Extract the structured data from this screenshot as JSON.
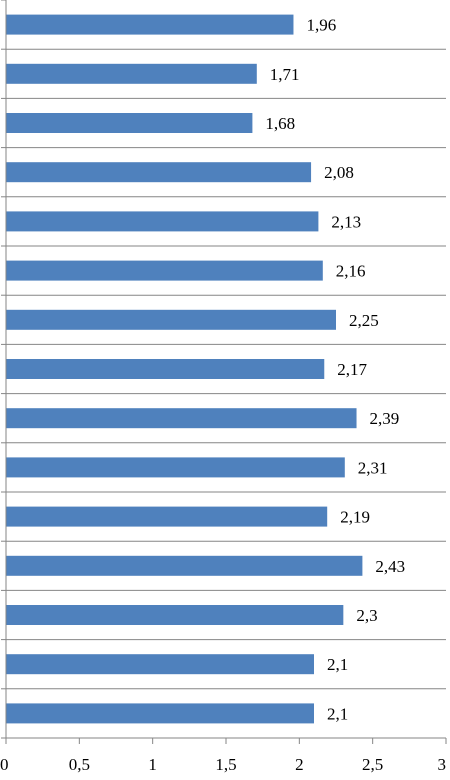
{
  "chart_data": {
    "type": "bar",
    "orientation": "horizontal",
    "values": [
      1.96,
      1.71,
      1.68,
      2.08,
      2.13,
      2.16,
      2.25,
      2.17,
      2.39,
      2.31,
      2.19,
      2.43,
      2.3,
      2.1,
      2.1
    ],
    "data_labels": [
      "1,96",
      "1,71",
      "1,68",
      "2,08",
      "2,13",
      "2,16",
      "2,25",
      "2,17",
      "2,39",
      "2,31",
      "2,19",
      "2,43",
      "2,3",
      "2,1",
      "2,1"
    ],
    "xlim": [
      0,
      3
    ],
    "x_ticks": [
      0,
      0.5,
      1,
      1.5,
      2,
      2.5,
      3
    ],
    "x_tick_labels": [
      "0",
      "0,5",
      "1",
      "1,5",
      "2",
      "2,5",
      "3"
    ],
    "grid": "horizontal category separators",
    "title": "",
    "xlabel": "",
    "ylabel": "",
    "bar_color": "#4f81bd",
    "grid_color": "#868686"
  }
}
